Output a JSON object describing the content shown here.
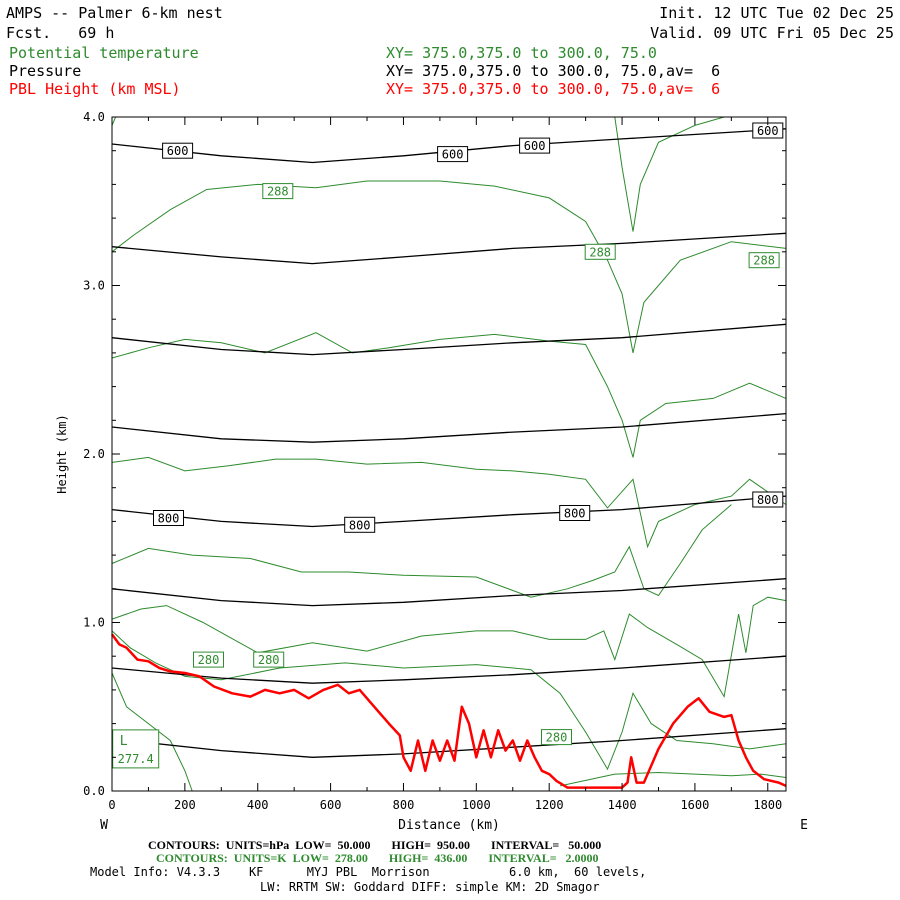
{
  "header": {
    "title": "AMPS -- Palmer 6-km nest",
    "fcst": "Fcst.   69 h",
    "init": "Init. 12 UTC Tue 02 Dec 25",
    "valid": "Valid. 09 UTC Fri 05 Dec 25",
    "fields": [
      {
        "name": "Potential temperature",
        "xy": "XY= 375.0,375.0 to 300.0, 75.0",
        "color": "#2e8b2e"
      },
      {
        "name": "Pressure",
        "xy": "XY= 375.0,375.0 to 300.0, 75.0,av=  6",
        "color": "#000000"
      },
      {
        "name": "PBL Height (km MSL)",
        "xy": "XY= 375.0,375.0 to 300.0, 75.0,av=  6",
        "color": "#ff0000"
      }
    ]
  },
  "colors": {
    "theta": "#2e8b2e",
    "pressure": "#000000",
    "pbl": "#ff0000"
  },
  "chart_data": {
    "type": "line",
    "xlabel": "Distance (km)",
    "ylabel": "Height (km)",
    "xlim": [
      0,
      1850
    ],
    "ylim": [
      0,
      4
    ],
    "x_ticks": [
      0,
      200,
      400,
      600,
      800,
      1000,
      1200,
      1400,
      1600,
      1800
    ],
    "x_tick_labels": [
      "0",
      "200",
      "400",
      "600",
      "800",
      "1000",
      "1200",
      "1400",
      "1600",
      "1800"
    ],
    "y_ticks": [
      0,
      1,
      2,
      3,
      4
    ],
    "y_tick_labels": [
      "0.0",
      "1.0",
      "2.0",
      "3.0",
      "4.0"
    ],
    "x_end_labels": {
      "left": "W",
      "right": "E"
    },
    "pressure_contours": [
      {
        "level": "600",
        "x": [
          0,
          300,
          550,
          800,
          1100,
          1400,
          1850
        ],
        "y": [
          3.84,
          3.77,
          3.73,
          3.77,
          3.83,
          3.87,
          3.93
        ]
      },
      {
        "level": "",
        "x": [
          0,
          300,
          550,
          800,
          1100,
          1400,
          1850
        ],
        "y": [
          3.23,
          3.17,
          3.13,
          3.17,
          3.22,
          3.25,
          3.31
        ]
      },
      {
        "level": "",
        "x": [
          0,
          300,
          550,
          800,
          1100,
          1400,
          1850
        ],
        "y": [
          2.69,
          2.62,
          2.59,
          2.62,
          2.66,
          2.69,
          2.77
        ]
      },
      {
        "level": "",
        "x": [
          0,
          300,
          550,
          800,
          1100,
          1400,
          1850
        ],
        "y": [
          2.16,
          2.09,
          2.07,
          2.09,
          2.13,
          2.16,
          2.24
        ]
      },
      {
        "level": "800",
        "x": [
          0,
          300,
          550,
          800,
          1100,
          1400,
          1850
        ],
        "y": [
          1.67,
          1.6,
          1.57,
          1.6,
          1.64,
          1.67,
          1.75
        ]
      },
      {
        "level": "",
        "x": [
          0,
          300,
          550,
          800,
          1100,
          1400,
          1850
        ],
        "y": [
          1.2,
          1.13,
          1.1,
          1.12,
          1.16,
          1.19,
          1.26
        ]
      },
      {
        "level": "",
        "x": [
          0,
          300,
          550,
          800,
          1100,
          1400,
          1850
        ],
        "y": [
          0.73,
          0.67,
          0.64,
          0.66,
          0.69,
          0.73,
          0.8
        ]
      },
      {
        "level": "",
        "x": [
          0,
          300,
          550,
          800,
          1100,
          1400,
          1850
        ],
        "y": [
          0.31,
          0.24,
          0.2,
          0.22,
          0.26,
          0.3,
          0.37
        ]
      }
    ],
    "pressure_labels": [
      {
        "text": "600",
        "x": 180,
        "y": 3.8
      },
      {
        "text": "600",
        "x": 935,
        "y": 3.78
      },
      {
        "text": "600",
        "x": 1160,
        "y": 3.83
      },
      {
        "text": "600",
        "x": 1800,
        "y": 3.92
      },
      {
        "text": "800",
        "x": 155,
        "y": 1.62
      },
      {
        "text": "800",
        "x": 680,
        "y": 1.58
      },
      {
        "text": "800",
        "x": 1270,
        "y": 1.65
      },
      {
        "text": "800",
        "x": 1800,
        "y": 1.73
      }
    ],
    "theta_contours": [
      {
        "x": [
          0,
          60,
          160,
          260,
          400,
          560,
          700,
          900,
          1050,
          1200,
          1300,
          1360,
          1400,
          1430,
          1460,
          1560,
          1700
        ],
        "y": [
          3.2,
          3.3,
          3.45,
          3.57,
          3.6,
          3.58,
          3.62,
          3.62,
          3.59,
          3.52,
          3.38,
          3.15,
          2.95,
          2.6,
          2.9,
          3.15,
          3.26
        ]
      },
      {
        "x": [
          1700,
          1850
        ],
        "y": [
          3.26,
          3.22
        ]
      },
      {
        "x": [
          1380,
          1400,
          1430,
          1450,
          1500,
          1600,
          1680
        ],
        "y": [
          4.0,
          3.7,
          3.32,
          3.6,
          3.85,
          3.95,
          4.0
        ]
      },
      {
        "x": [
          0,
          10
        ],
        "y": [
          3.95,
          4.0
        ]
      },
      {
        "x": [
          0,
          100,
          200,
          300,
          420,
          560,
          660,
          760,
          900,
          1050,
          1200,
          1300,
          1360,
          1400,
          1430,
          1450,
          1520,
          1650,
          1750,
          1850
        ],
        "y": [
          2.57,
          2.63,
          2.68,
          2.66,
          2.6,
          2.72,
          2.6,
          2.63,
          2.68,
          2.71,
          2.67,
          2.65,
          2.4,
          2.2,
          1.98,
          2.2,
          2.3,
          2.33,
          2.42,
          2.33
        ]
      },
      {
        "x": [
          0,
          100,
          200,
          320,
          450,
          560,
          700,
          850,
          1000,
          1100,
          1200,
          1300,
          1360,
          1430,
          1470,
          1500,
          1600,
          1700,
          1750,
          1850
        ],
        "y": [
          1.95,
          1.98,
          1.9,
          1.93,
          1.97,
          1.97,
          1.94,
          1.95,
          1.91,
          1.9,
          1.88,
          1.85,
          1.68,
          1.85,
          1.45,
          1.6,
          1.7,
          1.75,
          1.85,
          1.7
        ]
      },
      {
        "x": [
          0,
          100,
          220,
          380,
          520,
          650,
          800,
          1000,
          1150,
          1250,
          1320,
          1380,
          1420,
          1460,
          1500,
          1560,
          1620,
          1700
        ],
        "y": [
          1.35,
          1.44,
          1.4,
          1.38,
          1.3,
          1.3,
          1.28,
          1.27,
          1.15,
          1.2,
          1.25,
          1.3,
          1.45,
          1.2,
          1.16,
          1.35,
          1.55,
          1.7
        ]
      },
      {
        "x": [
          0,
          80,
          150,
          250,
          400,
          550,
          700,
          850,
          1000,
          1100,
          1200,
          1300,
          1350,
          1380,
          1420,
          1470,
          1550,
          1620,
          1680,
          1720,
          1740,
          1760,
          1800,
          1850
        ],
        "y": [
          1.02,
          1.08,
          1.1,
          1.0,
          0.82,
          0.88,
          0.83,
          0.92,
          0.95,
          0.95,
          0.9,
          0.9,
          0.95,
          0.78,
          1.05,
          0.97,
          0.87,
          0.78,
          0.56,
          1.05,
          0.82,
          1.1,
          1.15,
          1.13
        ]
      },
      {
        "x": [
          0,
          50,
          120,
          200,
          300,
          460,
          640,
          800,
          1000,
          1150,
          1230,
          1300,
          1360,
          1400,
          1430,
          1480,
          1550,
          1650,
          1750,
          1850
        ],
        "y": [
          0.95,
          0.85,
          0.76,
          0.68,
          0.66,
          0.73,
          0.76,
          0.73,
          0.75,
          0.72,
          0.58,
          0.35,
          0.13,
          0.35,
          0.58,
          0.4,
          0.3,
          0.28,
          0.25,
          0.28
        ]
      },
      {
        "x": [
          0,
          40,
          100,
          160,
          200,
          220
        ],
        "y": [
          0.7,
          0.5,
          0.4,
          0.3,
          0.12,
          0.0
        ]
      },
      {
        "x": [
          1230,
          1380,
          1500,
          1600,
          1700,
          1780,
          1850
        ],
        "y": [
          0.03,
          0.1,
          0.11,
          0.1,
          0.09,
          0.1,
          0.08
        ]
      }
    ],
    "theta_labels": [
      {
        "text": "288",
        "x": 455,
        "y": 3.56
      },
      {
        "text": "288",
        "x": 1340,
        "y": 3.2
      },
      {
        "text": "288",
        "x": 1790,
        "y": 3.15
      },
      {
        "text": "280",
        "x": 265,
        "y": 0.78
      },
      {
        "text": "280",
        "x": 430,
        "y": 0.78
      },
      {
        "text": "280",
        "x": 1220,
        "y": 0.32
      }
    ],
    "min_label": {
      "mark": "L",
      "value": "277.4",
      "x": 65,
      "y": 0.25
    },
    "pbl_height": {
      "x": [
        0,
        20,
        40,
        70,
        100,
        130,
        160,
        200,
        240,
        280,
        330,
        380,
        420,
        460,
        500,
        540,
        580,
        620,
        650,
        680,
        720,
        760,
        790,
        800,
        820,
        840,
        860,
        880,
        900,
        920,
        940,
        960,
        980,
        1000,
        1020,
        1040,
        1060,
        1080,
        1100,
        1120,
        1140,
        1160,
        1180,
        1200,
        1220,
        1250,
        1300,
        1350,
        1400,
        1415,
        1425,
        1440,
        1460,
        1500,
        1540,
        1580,
        1610,
        1640,
        1680,
        1700,
        1720,
        1740,
        1760,
        1790,
        1830,
        1850
      ],
      "y": [
        0.93,
        0.87,
        0.85,
        0.78,
        0.77,
        0.73,
        0.71,
        0.7,
        0.68,
        0.62,
        0.58,
        0.56,
        0.6,
        0.58,
        0.6,
        0.55,
        0.6,
        0.63,
        0.58,
        0.6,
        0.5,
        0.4,
        0.33,
        0.2,
        0.12,
        0.3,
        0.12,
        0.3,
        0.18,
        0.3,
        0.18,
        0.5,
        0.4,
        0.2,
        0.36,
        0.2,
        0.36,
        0.24,
        0.3,
        0.18,
        0.3,
        0.2,
        0.12,
        0.1,
        0.06,
        0.02,
        0.02,
        0.02,
        0.02,
        0.05,
        0.2,
        0.05,
        0.05,
        0.25,
        0.4,
        0.5,
        0.55,
        0.47,
        0.44,
        0.45,
        0.3,
        0.2,
        0.12,
        0.07,
        0.05,
        0.03
      ]
    }
  },
  "footer": {
    "contours_pressure": "CONTOURS:  UNITS=hPa  LOW=  50.000       HIGH=  950.00       INTERVAL=   50.000",
    "contours_theta": "CONTOURS:  UNITS=K  LOW=  278.00       HIGH=  436.00       INTERVAL=   2.0000",
    "model_info": "Model Info: V4.3.3    KF      MYJ PBL  Morrison           6.0 km,  60 levels,",
    "physics": "LW: RRTM SW: Goddard DIFF: simple KM: 2D Smagor"
  }
}
